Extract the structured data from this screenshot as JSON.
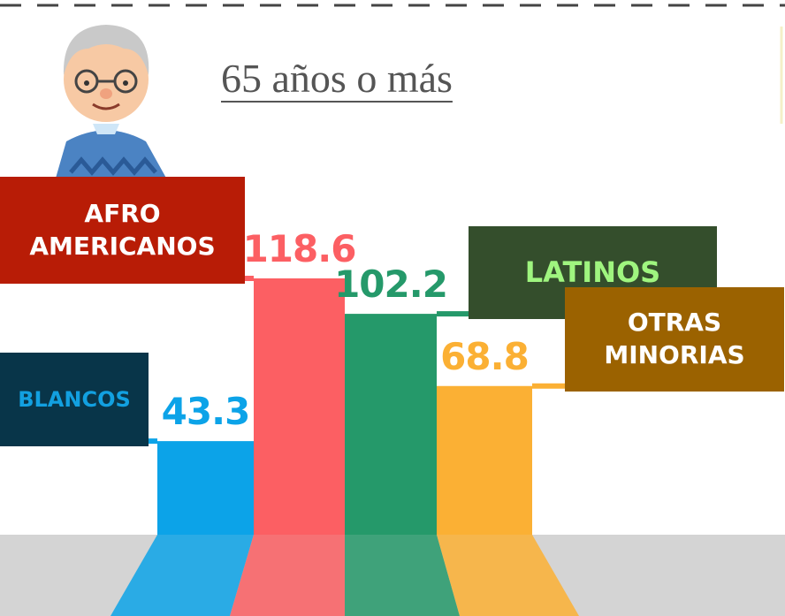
{
  "chart_data": {
    "type": "bar",
    "title": "65 años o más",
    "categories": [
      "BLANCOS",
      "AFRO AMERICANOS",
      "LATINOS",
      "OTRAS MINORIAS"
    ],
    "values": [
      43.3,
      118.6,
      102.2,
      68.8
    ],
    "colors": [
      "#0ca3e8",
      "#fc5f63",
      "#25996a",
      "#fbb034"
    ]
  }
}
